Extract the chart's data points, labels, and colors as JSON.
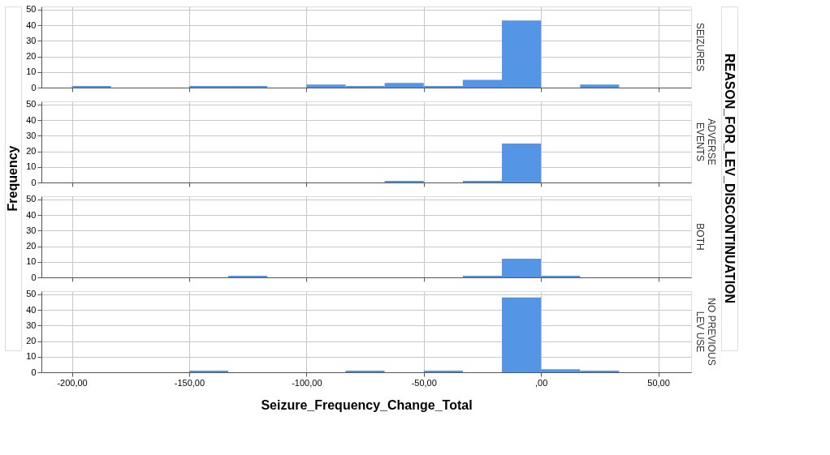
{
  "chart_data": [
    {
      "type": "histogram",
      "title": "SEIZURES",
      "ylabel": "Frequency",
      "annotations": [
        "REASON_FOR_LEV_DISCONTINUATION"
      ],
      "color": "#5495e6",
      "bins": [
        -200,
        -183.33,
        -166.67,
        -150,
        -133.33,
        -116.67,
        -100,
        -83.33,
        -66.67,
        -50,
        -33.33,
        -16.67,
        0,
        16.67,
        33.33,
        50
      ],
      "values": [
        1,
        0,
        0,
        1,
        1,
        0,
        2,
        1,
        3,
        1,
        5,
        43,
        0,
        2,
        0
      ],
      "xlim": [
        -213,
        64
      ],
      "xticks": [
        -200,
        -150,
        -100,
        -50,
        0,
        50
      ],
      "ylim": [
        0,
        52
      ],
      "yticks": [
        0,
        10,
        20,
        30,
        40,
        50
      ],
      "grid": true,
      "tick_labels": "y"
    },
    {
      "type": "histogram",
      "title": "ADVERSE\nEVENTS",
      "color": "#5495e6",
      "bins": [
        -200,
        -183.33,
        -166.67,
        -150,
        -133.33,
        -116.67,
        -100,
        -83.33,
        -66.67,
        -50,
        -33.33,
        -16.67,
        0,
        16.67,
        33.33,
        50
      ],
      "values": [
        0,
        0,
        0,
        0,
        0,
        0,
        0,
        0,
        1,
        0,
        1,
        25,
        0,
        0,
        0
      ],
      "xlim": [
        -213,
        64
      ],
      "xticks": [
        -200,
        -150,
        -100,
        -50,
        0,
        50
      ],
      "ylim": [
        0,
        52
      ],
      "yticks": [
        0,
        10,
        20,
        30,
        40,
        50
      ],
      "grid": true,
      "tick_labels": "y"
    },
    {
      "type": "histogram",
      "title": "BOTH",
      "color": "#5495e6",
      "bins": [
        -200,
        -183.33,
        -166.67,
        -150,
        -133.33,
        -116.67,
        -100,
        -83.33,
        -66.67,
        -50,
        -33.33,
        -16.67,
        0,
        16.67,
        33.33,
        50
      ],
      "values": [
        0,
        0,
        0,
        0,
        1,
        0,
        0,
        0,
        0,
        0,
        1,
        12,
        1,
        0,
        0
      ],
      "xlim": [
        -213,
        64
      ],
      "xticks": [
        -200,
        -150,
        -100,
        -50,
        0,
        50
      ],
      "ylim": [
        0,
        52
      ],
      "yticks": [
        0,
        10,
        20,
        30,
        40,
        50
      ],
      "grid": true,
      "tick_labels": "y"
    },
    {
      "type": "histogram",
      "title": "NO PREVIOUS\nLEV USE",
      "xlabel": "Seizure_Frequency_Change_Total",
      "color": "#5495e6",
      "bins": [
        -200,
        -183.33,
        -166.67,
        -150,
        -133.33,
        -116.67,
        -100,
        -83.33,
        -66.67,
        -50,
        -33.33,
        -16.67,
        0,
        16.67,
        33.33,
        50
      ],
      "values": [
        0,
        0,
        0,
        1,
        0,
        0,
        0,
        1,
        0,
        1,
        0,
        48,
        2,
        1,
        0
      ],
      "xlim": [
        -213,
        64
      ],
      "xticks": [
        {
          "value": -200,
          "label": "-200,00"
        },
        {
          "value": -150,
          "label": "-150,00"
        },
        {
          "value": -100,
          "label": "-100,00"
        },
        {
          "value": -50,
          "label": "-50,00"
        },
        {
          "value": 0,
          "label": ",00"
        },
        {
          "value": 50,
          "label": "50,00"
        }
      ],
      "ylim": [
        0,
        52
      ],
      "yticks": [
        0,
        10,
        20,
        30,
        40,
        50
      ],
      "grid": true
    }
  ]
}
